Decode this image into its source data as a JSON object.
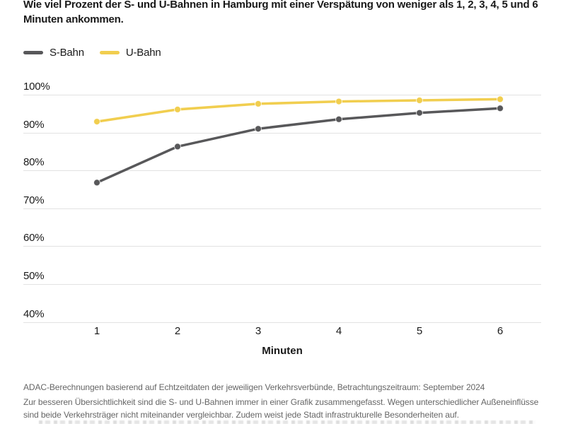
{
  "header": {
    "title": "Wie viel Prozent der S- und U-Bahnen in Hamburg mit einer Verspätung von weniger als 1, 2, 3, 4, 5 und 6 Minuten ankommen."
  },
  "legend": [
    {
      "label": "S-Bahn",
      "color": "#58585a"
    },
    {
      "label": "U-Bahn",
      "color": "#f1ce4f"
    }
  ],
  "chart_data": {
    "type": "line",
    "x": [
      1,
      2,
      3,
      4,
      5,
      6
    ],
    "x_tick_labels": [
      "1",
      "2",
      "3",
      "4",
      "5",
      "6"
    ],
    "xlabel": "Minuten",
    "y_ticks": [
      100,
      90,
      80,
      70,
      60,
      50,
      40
    ],
    "y_tick_labels": [
      "100%",
      "90%",
      "80%",
      "70%",
      "60%",
      "50%",
      "40%"
    ],
    "ylim": [
      40,
      100
    ],
    "grid": "horizontal",
    "legend_position": "top-left",
    "series": [
      {
        "name": "S-Bahn",
        "color": "#58585a",
        "values": [
          76.8,
          86.3,
          91.0,
          93.5,
          95.2,
          96.4
        ]
      },
      {
        "name": "U-Bahn",
        "color": "#f1ce4f",
        "values": [
          92.9,
          96.1,
          97.6,
          98.2,
          98.5,
          98.8
        ]
      }
    ]
  },
  "footer": {
    "source_line": "ADAC-Berechnungen basierend auf Echtzeitdaten der jeweiligen Verkehrsverbünde, Betrachtungszeitraum: September 2024",
    "note_line": "Zur besseren Übersichtlichkeit sind die S- und U-Bahnen immer in einer Grafik zusammengefasst. Wegen unterschiedlicher Außeneinflüsse sind beide Verkehrsträger nicht miteinander vergleichbar. Zudem weist jede Stadt infrastrukturelle Besonderheiten auf."
  }
}
